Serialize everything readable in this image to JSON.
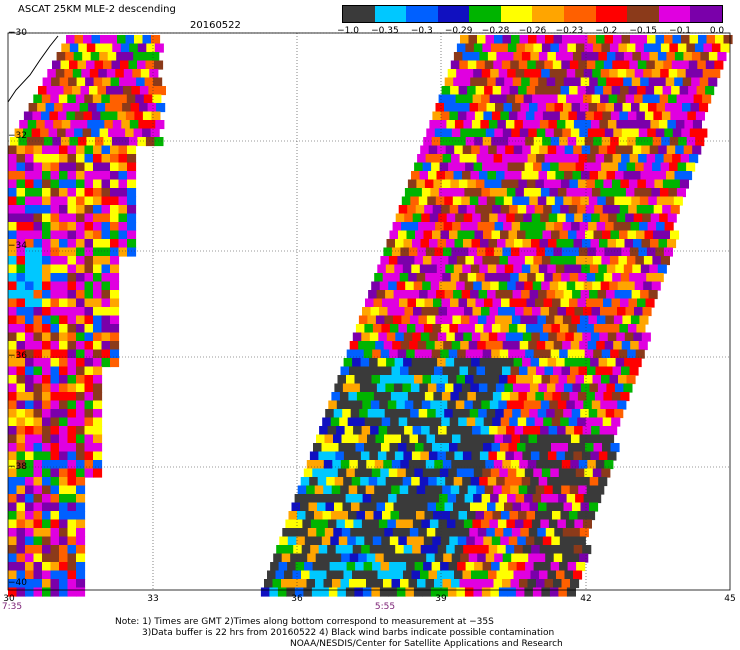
{
  "header": {
    "title": "ASCAT 25KM MLE-2 descending",
    "date": "20160522"
  },
  "colorbar": {
    "colors": [
      "#3a3a3a",
      "#00c8ff",
      "#0060ff",
      "#1010c0",
      "#00b400",
      "#ffff00",
      "#ffa500",
      "#ff6000",
      "#ff0000",
      "#8b3a1a",
      "#e000e0",
      "#7a00aa"
    ],
    "labels": [
      "−1.0",
      "−0.35",
      "−0.3",
      "−0.29",
      "−0.28",
      "−0.26",
      "−0.23",
      "−0.2",
      "−0.15",
      "−0.1",
      "0.0"
    ]
  },
  "axes": {
    "y_labels": [
      "−30",
      "−32",
      "−34",
      "−36",
      "−38",
      "−40"
    ],
    "x_labels": [
      "30",
      "33",
      "36",
      "39",
      "42",
      "45"
    ]
  },
  "times": {
    "left": "7:35",
    "center": "5:55"
  },
  "notes": {
    "line1": "Note: 1) Times are GMT 2)Times along bottom correspond to measurement at −35S",
    "line2": "3)Data buffer is 22 hrs from 20160522 4) Black wind barbs indicate possible contamination",
    "line3": "NOAA/NESDIS/Center for Satellite Applications and Research"
  }
}
